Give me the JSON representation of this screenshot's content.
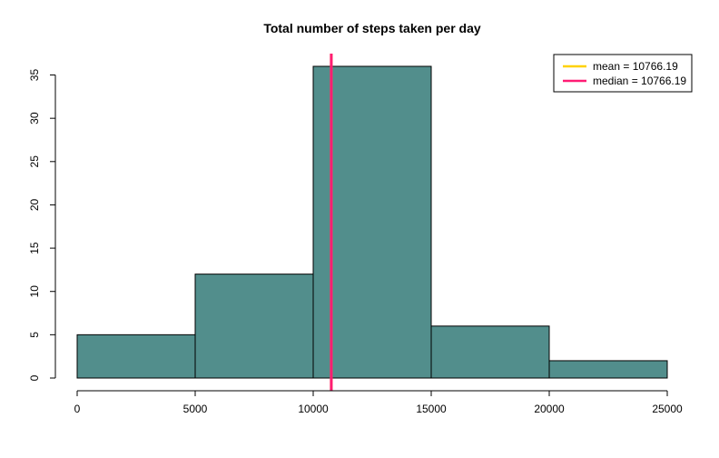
{
  "chart_data": {
    "type": "bar",
    "title": "Total number of steps taken per day",
    "xlabel": "",
    "ylabel": "",
    "bins": [
      {
        "from": 0,
        "to": 5000,
        "count": 5
      },
      {
        "from": 5000,
        "to": 10000,
        "count": 12
      },
      {
        "from": 10000,
        "to": 15000,
        "count": 36
      },
      {
        "from": 15000,
        "to": 20000,
        "count": 6
      },
      {
        "from": 20000,
        "to": 25000,
        "count": 2
      }
    ],
    "xlim": [
      0,
      25000
    ],
    "ylim": [
      0,
      36
    ],
    "x_ticks": [
      0,
      5000,
      10000,
      15000,
      20000,
      25000
    ],
    "y_ticks": [
      0,
      5,
      10,
      15,
      20,
      25,
      30,
      35
    ],
    "bar_color": "#528e8c",
    "lines": [
      {
        "name": "mean",
        "value": 10766.19,
        "color": "#ffd200",
        "label": "mean = 10766.19"
      },
      {
        "name": "median",
        "value": 10766.19,
        "color": "#ff1c74",
        "label": "median = 10766.19"
      }
    ],
    "legend_position": "top-right",
    "grid": false
  }
}
